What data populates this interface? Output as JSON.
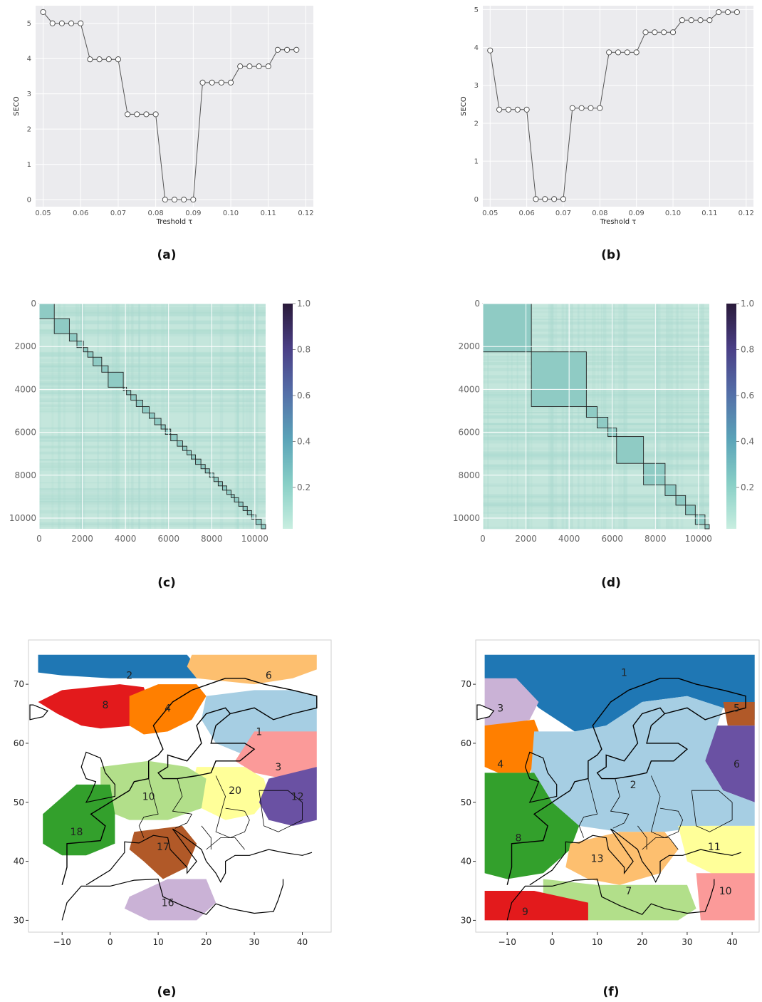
{
  "captions": {
    "a": "(a)",
    "b": "(b)",
    "c": "(c)",
    "d": "(d)",
    "e": "(e)",
    "f": "(f)"
  },
  "chart_data": [
    {
      "id": "a",
      "type": "line",
      "xlabel": "Treshold τ",
      "ylabel": "SECO",
      "xlim": [
        0.048,
        0.122
      ],
      "ylim": [
        -0.2,
        5.5
      ],
      "xticks": [
        "0.05",
        "0.06",
        "0.07",
        "0.08",
        "0.09",
        "0.10",
        "0.11",
        "0.12"
      ],
      "yticks": [
        "0",
        "1",
        "2",
        "3",
        "4",
        "5"
      ],
      "grid": true,
      "x": [
        0.05,
        0.0525,
        0.055,
        0.0575,
        0.06,
        0.0625,
        0.065,
        0.0675,
        0.07,
        0.0725,
        0.075,
        0.0775,
        0.08,
        0.0825,
        0.085,
        0.0875,
        0.09,
        0.0925,
        0.095,
        0.0975,
        0.1,
        0.1025,
        0.105,
        0.1075,
        0.11,
        0.1125,
        0.115,
        0.1175
      ],
      "y": [
        5.32,
        5.0,
        5.0,
        5.0,
        5.0,
        3.98,
        3.98,
        3.98,
        3.98,
        2.42,
        2.42,
        2.42,
        2.42,
        0.0,
        0.0,
        0.0,
        0.0,
        3.32,
        3.32,
        3.32,
        3.32,
        3.78,
        3.78,
        3.78,
        3.78,
        4.25,
        4.25,
        4.25
      ]
    },
    {
      "id": "b",
      "type": "line",
      "xlabel": "Treshold τ",
      "ylabel": "SECO",
      "xlim": [
        0.048,
        0.122
      ],
      "ylim": [
        -0.2,
        5.1
      ],
      "xticks": [
        "0.05",
        "0.06",
        "0.07",
        "0.08",
        "0.09",
        "0.10",
        "0.11",
        "0.12"
      ],
      "yticks": [
        "0",
        "1",
        "2",
        "3",
        "4",
        "5"
      ],
      "grid": true,
      "x": [
        0.05,
        0.0525,
        0.055,
        0.0575,
        0.06,
        0.0625,
        0.065,
        0.0675,
        0.07,
        0.0725,
        0.075,
        0.0775,
        0.08,
        0.0825,
        0.085,
        0.0875,
        0.09,
        0.0925,
        0.095,
        0.0975,
        0.1,
        0.1025,
        0.105,
        0.1075,
        0.11,
        0.1125,
        0.115,
        0.1175
      ],
      "y": [
        3.92,
        2.36,
        2.36,
        2.36,
        2.36,
        0.0,
        0.0,
        0.0,
        0.0,
        2.4,
        2.4,
        2.4,
        2.4,
        3.87,
        3.87,
        3.87,
        3.87,
        4.4,
        4.4,
        4.4,
        4.4,
        4.72,
        4.72,
        4.72,
        4.72,
        4.93,
        4.93,
        4.93
      ]
    },
    {
      "id": "c",
      "type": "heatmap",
      "xlim": [
        0,
        10500
      ],
      "ylim": [
        0,
        10500
      ],
      "xticks": [
        "0",
        "2000",
        "4000",
        "6000",
        "8000",
        "10000"
      ],
      "yticks": [
        "0",
        "2000",
        "4000",
        "6000",
        "8000",
        "10000"
      ],
      "colorbar_ticks": [
        "0.2",
        "0.4",
        "0.6",
        "0.8",
        "1.0"
      ],
      "blocks": [
        0,
        700,
        1400,
        1750,
        2050,
        2250,
        2500,
        2900,
        3200,
        3900,
        4050,
        4250,
        4500,
        4800,
        5100,
        5350,
        5650,
        5850,
        6100,
        6400,
        6650,
        6850,
        7050,
        7250,
        7500,
        7700,
        7900,
        8100,
        8300,
        8500,
        8700,
        8900,
        9050,
        9250,
        9450,
        9650,
        9850,
        10050,
        10300,
        10500
      ]
    },
    {
      "id": "d",
      "type": "heatmap",
      "xlim": [
        0,
        10500
      ],
      "ylim": [
        0,
        10500
      ],
      "xticks": [
        "0",
        "2000",
        "4000",
        "6000",
        "8000",
        "10000"
      ],
      "yticks": [
        "0",
        "2000",
        "4000",
        "6000",
        "8000",
        "10000"
      ],
      "colorbar_ticks": [
        "0.2",
        "0.4",
        "0.6",
        "0.8",
        "1.0"
      ],
      "blocks": [
        0,
        2250,
        4800,
        5300,
        5800,
        6200,
        7450,
        8450,
        8950,
        9400,
        9850,
        10300,
        10500
      ]
    },
    {
      "id": "e",
      "type": "map",
      "xlim": [
        -17,
        46
      ],
      "ylim": [
        28,
        77.5
      ],
      "xticks": [
        "−10",
        "0",
        "10",
        "20",
        "30",
        "40"
      ],
      "yticks": [
        "30",
        "40",
        "50",
        "60",
        "70"
      ],
      "regions": [
        {
          "label": "2",
          "color": "#1f77b4",
          "lon": 4,
          "lat": 71.5
        },
        {
          "label": "6",
          "color": "#fdbf6f",
          "lon": 33,
          "lat": 71.5
        },
        {
          "label": "8",
          "color": "#e31a1c",
          "lon": -1,
          "lat": 66.5
        },
        {
          "label": "4",
          "color": "#ff7f00",
          "lon": 12,
          "lat": 66
        },
        {
          "label": "1",
          "color": "#a6cee3",
          "lon": 31,
          "lat": 62
        },
        {
          "label": "3",
          "color": "#fb9a99",
          "lon": 35,
          "lat": 56
        },
        {
          "label": "20",
          "color": "#ffff99",
          "lon": 26,
          "lat": 52
        },
        {
          "label": "12",
          "color": "#6a51a3",
          "lon": 39,
          "lat": 51
        },
        {
          "label": "10",
          "color": "#b2df8a",
          "lon": 8,
          "lat": 51
        },
        {
          "label": "18",
          "color": "#33a02c",
          "lon": -7,
          "lat": 45
        },
        {
          "label": "17",
          "color": "#b15928",
          "lon": 11,
          "lat": 42.5
        },
        {
          "label": "16",
          "color": "#cab2d6",
          "lon": 12,
          "lat": 33
        }
      ]
    },
    {
      "id": "f",
      "type": "map",
      "xlim": [
        -17,
        46
      ],
      "ylim": [
        28,
        77.5
      ],
      "xticks": [
        "−10",
        "0",
        "10",
        "20",
        "30",
        "40"
      ],
      "yticks": [
        "30",
        "40",
        "50",
        "60",
        "70"
      ],
      "regions": [
        {
          "label": "1",
          "color": "#1f77b4",
          "lon": 16,
          "lat": 72
        },
        {
          "label": "3",
          "color": "#cab2d6",
          "lon": -11.5,
          "lat": 66
        },
        {
          "label": "5",
          "color": "#b15928",
          "lon": 41,
          "lat": 66
        },
        {
          "label": "4",
          "color": "#ff7f00",
          "lon": -11.5,
          "lat": 56.5
        },
        {
          "label": "6",
          "color": "#6a51a3",
          "lon": 41,
          "lat": 56.5
        },
        {
          "label": "2",
          "color": "#a6cee3",
          "lon": 18,
          "lat": 53
        },
        {
          "label": "8",
          "color": "#33a02c",
          "lon": -7.5,
          "lat": 44
        },
        {
          "label": "11",
          "color": "#ffff99",
          "lon": 36,
          "lat": 42.5
        },
        {
          "label": "13",
          "color": "#fdbf6f",
          "lon": 10,
          "lat": 40.5
        },
        {
          "label": "7",
          "color": "#b2df8a",
          "lon": 17,
          "lat": 35
        },
        {
          "label": "10",
          "color": "#fb9a99",
          "lon": 38.5,
          "lat": 35
        },
        {
          "label": "9",
          "color": "#e31a1c",
          "lon": -6,
          "lat": 31.5
        }
      ]
    }
  ]
}
